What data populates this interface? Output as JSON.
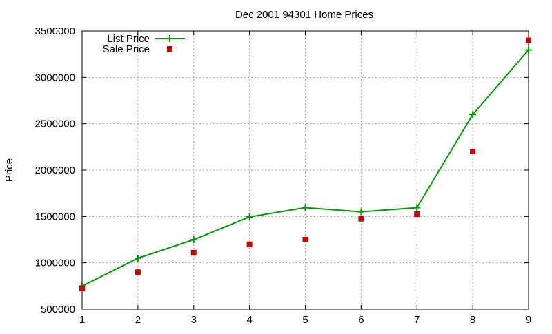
{
  "chart_data": {
    "type": "line",
    "title": "Dec 2001 94301 Home Prices",
    "xlabel": "",
    "ylabel": "Price",
    "xlim": [
      1,
      9
    ],
    "ylim": [
      500000,
      3500000
    ],
    "x_ticks": [
      1,
      2,
      3,
      4,
      5,
      6,
      7,
      8,
      9
    ],
    "y_ticks": [
      500000,
      1000000,
      1500000,
      2000000,
      2500000,
      3000000,
      3500000
    ],
    "grid": true,
    "legend_position": "top-left",
    "series": [
      {
        "name": "List Price",
        "style": "line-with-plus-markers",
        "color": "#009900",
        "x": [
          1,
          2,
          3,
          4,
          5,
          6,
          7,
          8,
          9
        ],
        "y": [
          750000,
          1050000,
          1250000,
          1495000,
          1595000,
          1550000,
          1595000,
          2600000,
          3295000
        ]
      },
      {
        "name": "Sale Price",
        "style": "square-markers",
        "color": "#cc0000",
        "x": [
          1,
          2,
          3,
          4,
          5,
          6,
          7,
          8,
          9
        ],
        "y": [
          725000,
          900000,
          1110000,
          1200000,
          1250000,
          1475000,
          1525000,
          2200000,
          3400000
        ]
      }
    ]
  }
}
